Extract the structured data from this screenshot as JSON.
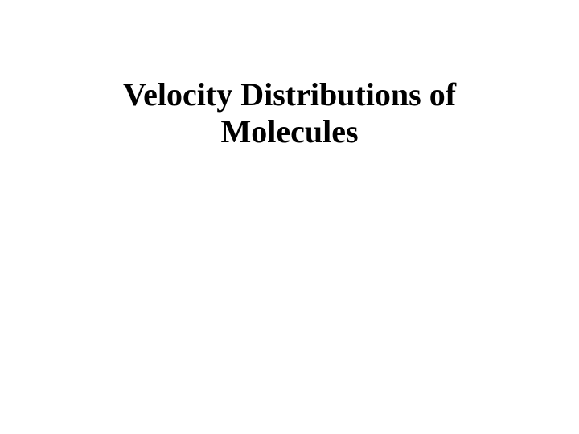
{
  "slide": {
    "title": "Velocity Distributions of Molecules",
    "title_fontsize": 40,
    "title_fontweight": "bold",
    "title_color": "#000000",
    "background_color": "#ffffff",
    "font_family": "Times New Roman",
    "text_align": "center",
    "container_width": 560
  }
}
